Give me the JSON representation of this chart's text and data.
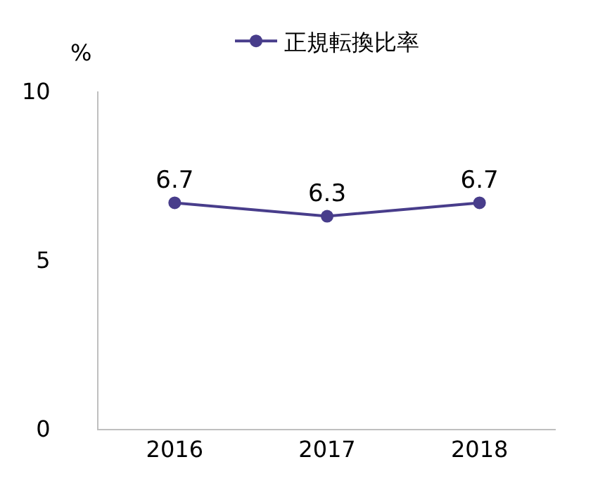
{
  "chart_data": {
    "type": "line",
    "ylabel": "%",
    "categories": [
      "2016",
      "2017",
      "2018"
    ],
    "series": [
      {
        "name": "正規転換比率",
        "color": "#483d8b",
        "values": [
          6.7,
          6.3,
          6.7
        ]
      }
    ],
    "ylim": [
      0,
      10
    ],
    "yticks": [
      0,
      5,
      10
    ],
    "grid": false,
    "legend": "top",
    "marker": "circle",
    "line_style": "solid",
    "data_labels": true
  }
}
